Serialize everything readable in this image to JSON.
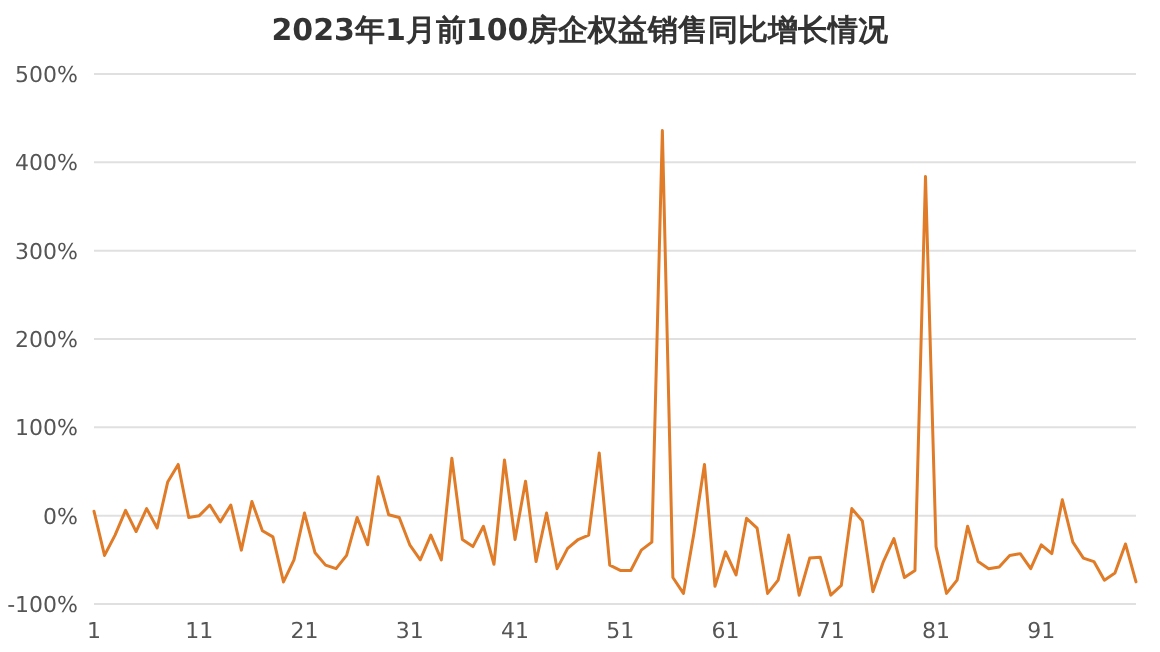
{
  "chart_data": {
    "type": "line",
    "title": "2023年1月前100房企权益销售同比增长情况",
    "x": [
      1,
      2,
      3,
      4,
      5,
      6,
      7,
      8,
      9,
      10,
      11,
      12,
      13,
      14,
      15,
      16,
      17,
      18,
      19,
      20,
      21,
      22,
      23,
      24,
      25,
      26,
      27,
      28,
      29,
      30,
      31,
      32,
      33,
      34,
      35,
      36,
      37,
      38,
      39,
      40,
      41,
      42,
      43,
      44,
      45,
      46,
      47,
      48,
      49,
      50,
      51,
      52,
      53,
      54,
      55,
      56,
      57,
      58,
      59,
      60,
      61,
      62,
      63,
      64,
      65,
      66,
      67,
      68,
      69,
      70,
      71,
      72,
      73,
      74,
      75,
      76,
      77,
      78,
      79,
      80,
      81,
      82,
      83,
      84,
      85,
      86,
      87,
      88,
      89,
      90,
      91,
      92,
      93,
      94,
      95,
      96,
      97,
      98,
      99,
      100
    ],
    "series": [
      {
        "color": "#e07b28",
        "values": [
          5,
          -45,
          -22,
          6,
          -18,
          8,
          -14,
          38,
          58,
          -2,
          0,
          12,
          -7,
          12,
          -39,
          16,
          -17,
          -24,
          -75,
          -50,
          3,
          -42,
          -56,
          -60,
          -45,
          -2,
          -33,
          44,
          1,
          -2,
          -33,
          -50,
          -22,
          -50,
          65,
          -27,
          -35,
          -12,
          -55,
          63,
          -27,
          39,
          -52,
          3,
          -60,
          -37,
          -27,
          -22,
          71,
          -56,
          -62,
          -62,
          -39,
          -30,
          436,
          -70,
          -88,
          -20,
          58,
          -80,
          -41,
          -67,
          -3,
          -14,
          -88,
          -73,
          -22,
          -90,
          -48,
          -47,
          -90,
          -79,
          8,
          -6,
          -86,
          -52,
          -26,
          -70,
          -62,
          384,
          -35,
          -88,
          -73,
          -12,
          -52,
          -60,
          -58,
          -45,
          -43,
          -60,
          -33,
          -43,
          18,
          -30,
          -48,
          -52,
          -73,
          -65,
          -32,
          -75
        ]
      }
    ],
    "xlim": [
      1,
      100
    ],
    "xticks": [
      1,
      11,
      21,
      31,
      41,
      51,
      61,
      71,
      81,
      91
    ],
    "ylim": [
      -100,
      500
    ],
    "yticks": [
      {
        "value": -100,
        "label": "-100%"
      },
      {
        "value": 0,
        "label": "0%"
      },
      {
        "value": 100,
        "label": "100%"
      },
      {
        "value": 200,
        "label": "200%"
      },
      {
        "value": 300,
        "label": "300%"
      },
      {
        "value": 400,
        "label": "400%"
      },
      {
        "value": 500,
        "label": "500%"
      }
    ],
    "grid": "y",
    "marker": "none",
    "line_style": "solid"
  }
}
